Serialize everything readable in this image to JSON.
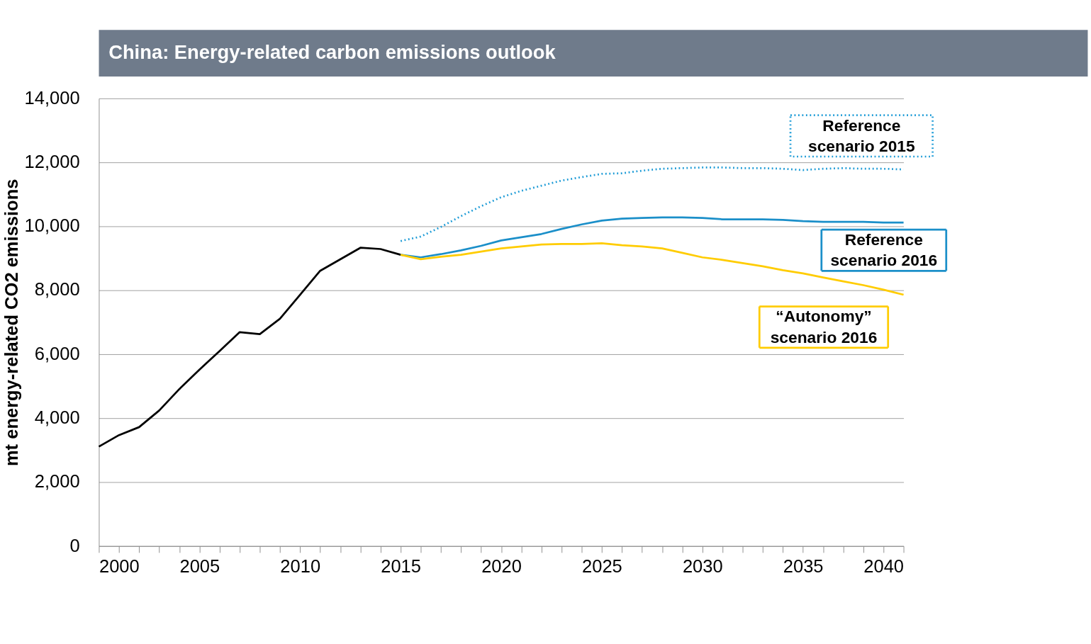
{
  "chart_data": {
    "type": "line",
    "title": "China: Energy-related  carbon emissions outlook",
    "ylabel": "mt energy-related CO2 emissions",
    "xlim": [
      2000,
      2040
    ],
    "ylim": [
      0,
      14000
    ],
    "xticks": [
      2000,
      {
        "value": 2001,
        "label": null
      },
      {
        "value": 2002,
        "label": null
      },
      {
        "value": 2003,
        "label": null
      },
      {
        "value": 2004,
        "label": null
      },
      2005,
      {
        "value": 2006,
        "label": null
      },
      {
        "value": 2007,
        "label": null
      },
      {
        "value": 2008,
        "label": null
      },
      {
        "value": 2009,
        "label": null
      },
      2010,
      {
        "value": 2011,
        "label": null
      },
      {
        "value": 2012,
        "label": null
      },
      {
        "value": 2013,
        "label": null
      },
      {
        "value": 2014,
        "label": null
      },
      2015,
      {
        "value": 2016,
        "label": null
      },
      {
        "value": 2017,
        "label": null
      },
      {
        "value": 2018,
        "label": null
      },
      {
        "value": 2019,
        "label": null
      },
      2020,
      {
        "value": 2021,
        "label": null
      },
      {
        "value": 2022,
        "label": null
      },
      {
        "value": 2023,
        "label": null
      },
      {
        "value": 2024,
        "label": null
      },
      2025,
      {
        "value": 2026,
        "label": null
      },
      {
        "value": 2027,
        "label": null
      },
      {
        "value": 2028,
        "label": null
      },
      {
        "value": 2029,
        "label": null
      },
      2030,
      {
        "value": 2031,
        "label": null
      },
      {
        "value": 2032,
        "label": null
      },
      {
        "value": 2033,
        "label": null
      },
      {
        "value": 2034,
        "label": null
      },
      2035,
      {
        "value": 2036,
        "label": null
      },
      {
        "value": 2037,
        "label": null
      },
      {
        "value": 2038,
        "label": null
      },
      {
        "value": 2039,
        "label": null
      },
      2040
    ],
    "yticks": [
      {
        "value": 0,
        "label": "0"
      },
      {
        "value": 2000,
        "label": "2,000"
      },
      {
        "value": 4000,
        "label": "4,000"
      },
      {
        "value": 6000,
        "label": "6,000"
      },
      {
        "value": 8000,
        "label": "8,000"
      },
      {
        "value": 10000,
        "label": "10,000"
      },
      {
        "value": 12000,
        "label": "12,000"
      },
      {
        "value": 14000,
        "label": "14,000"
      }
    ],
    "grid": "y",
    "marker": "none",
    "legend": false,
    "series": [
      {
        "color": "#000000",
        "line_style": "solid",
        "x": [
          2000,
          2001,
          2002,
          2003,
          2004,
          2005,
          2006,
          2007,
          2008,
          2009,
          2010,
          2011,
          2012,
          2013,
          2014,
          2015
        ],
        "values": [
          3110,
          3470,
          3720,
          4240,
          4910,
          5520,
          6100,
          6690,
          6630,
          7110,
          7860,
          8610,
          8970,
          9330,
          9290,
          9110
        ]
      },
      {
        "name": "Reference scenario 2015",
        "color": "#1a9ad6",
        "line_style": "dotted",
        "x": [
          2015,
          2016,
          2017,
          2018,
          2019,
          2020,
          2021,
          2022,
          2023,
          2024,
          2025,
          2026,
          2027,
          2028,
          2029,
          2030,
          2031,
          2032,
          2033,
          2034,
          2035,
          2036,
          2037,
          2038,
          2039,
          2040
        ],
        "values": [
          9540,
          9680,
          9980,
          10320,
          10630,
          10910,
          11110,
          11270,
          11430,
          11540,
          11640,
          11660,
          11740,
          11800,
          11820,
          11840,
          11840,
          11820,
          11820,
          11800,
          11760,
          11800,
          11820,
          11800,
          11800,
          11780
        ]
      },
      {
        "name": "Reference scenario 2016",
        "color": "#1b8fc9",
        "line_style": "solid",
        "x": [
          2015,
          2016,
          2017,
          2018,
          2019,
          2020,
          2021,
          2022,
          2023,
          2024,
          2025,
          2026,
          2027,
          2028,
          2029,
          2030,
          2031,
          2032,
          2033,
          2034,
          2035,
          2036,
          2037,
          2038,
          2039,
          2040
        ],
        "values": [
          9110,
          9030,
          9130,
          9250,
          9390,
          9560,
          9660,
          9760,
          9920,
          10060,
          10180,
          10240,
          10260,
          10280,
          10280,
          10260,
          10220,
          10220,
          10220,
          10200,
          10160,
          10140,
          10140,
          10140,
          10120,
          10120
        ]
      },
      {
        "name": "“Autonomy” scenario 2016",
        "color": "#ffcc00",
        "line_style": "solid",
        "x": [
          2015,
          2016,
          2017,
          2018,
          2019,
          2020,
          2021,
          2022,
          2023,
          2024,
          2025,
          2026,
          2027,
          2028,
          2029,
          2030,
          2031,
          2032,
          2033,
          2034,
          2035,
          2036,
          2037,
          2038,
          2039,
          2040
        ],
        "values": [
          9110,
          8970,
          9050,
          9110,
          9210,
          9310,
          9370,
          9430,
          9450,
          9450,
          9470,
          9410,
          9370,
          9310,
          9170,
          9030,
          8950,
          8850,
          8750,
          8630,
          8530,
          8400,
          8280,
          8160,
          8020,
          7860
        ]
      }
    ]
  }
}
